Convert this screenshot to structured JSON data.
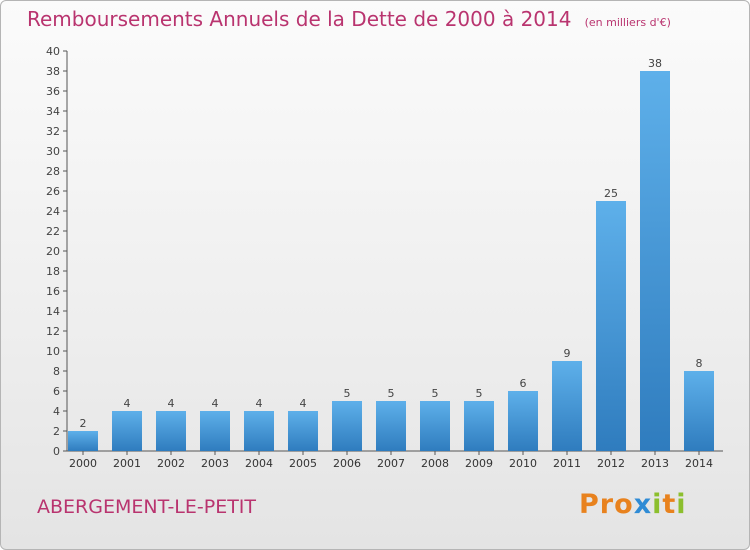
{
  "header": {
    "title": "Remboursements Annuels de la Dette de 2000 à 2014",
    "unit_note": "(en milliers d'€)"
  },
  "footer": {
    "commune": "ABERGEMENT-LE-PETIT",
    "logo_text": "Proxiti"
  },
  "colors": {
    "title": "#b9346f",
    "bar_top": "#5eb0ea",
    "bar_bottom": "#2f7cbe",
    "axis": "#555555",
    "logo_letters": [
      "#e8821e",
      "#e8821e",
      "#e8821e",
      "#2f8bd5",
      "#8cbf2e",
      "#e8821e",
      "#8cbf2e"
    ]
  },
  "chart_data": {
    "type": "bar",
    "title": "Remboursements Annuels de la Dette de 2000 à 2014",
    "categories": [
      "2000",
      "2001",
      "2002",
      "2003",
      "2004",
      "2005",
      "2006",
      "2007",
      "2008",
      "2009",
      "2010",
      "2011",
      "2012",
      "2013",
      "2014"
    ],
    "values": [
      2,
      4,
      4,
      4,
      4,
      4,
      5,
      5,
      5,
      5,
      6,
      9,
      25,
      38,
      8
    ],
    "ylim": [
      0,
      40
    ],
    "yticks": [
      0,
      2,
      4,
      6,
      8,
      10,
      12,
      14,
      16,
      18,
      20,
      22,
      24,
      26,
      28,
      30,
      32,
      34,
      36,
      38,
      40
    ],
    "xlabel": "",
    "ylabel": "",
    "grid": false,
    "data_labels": true
  }
}
